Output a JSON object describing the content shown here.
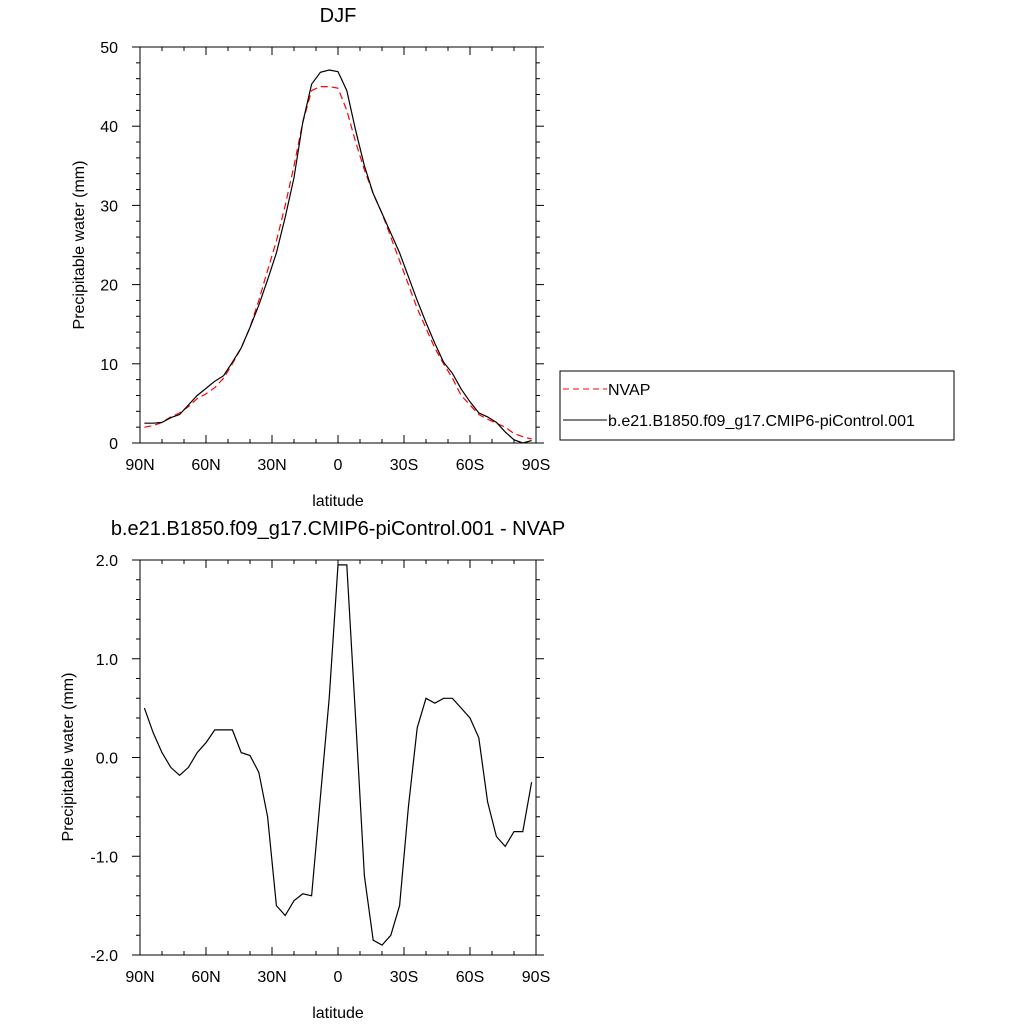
{
  "chart_data": [
    {
      "type": "line",
      "title": "DJF",
      "xlabel": "latitude",
      "ylabel": "Precipitable water (mm)",
      "x_tick_labels": [
        "90N",
        "60N",
        "30N",
        "0",
        "30S",
        "60S",
        "90S"
      ],
      "x_ticks": [
        90,
        60,
        30,
        0,
        -30,
        -60,
        -90
      ],
      "xlim": [
        90,
        -90
      ],
      "ylim": [
        0,
        50
      ],
      "y_ticks": [
        0,
        10,
        20,
        30,
        40,
        50
      ],
      "y_tick_labels": [
        "0",
        "10",
        "20",
        "30",
        "40",
        "50"
      ],
      "grid": false,
      "legend_position": "right-outside",
      "x": [
        88,
        84,
        80,
        76,
        72,
        68,
        64,
        60,
        56,
        52,
        48,
        44,
        40,
        36,
        32,
        28,
        24,
        20,
        16,
        12,
        8,
        4,
        0,
        -4,
        -8,
        -12,
        -16,
        -20,
        -24,
        -28,
        -32,
        -36,
        -40,
        -44,
        -48,
        -52,
        -56,
        -60,
        -64,
        -68,
        -72,
        -76,
        -80,
        -84,
        -88
      ],
      "series": [
        {
          "name": "NVAP",
          "color": "#ff0000",
          "dash": "dashed",
          "values": [
            2.0,
            2.2,
            2.6,
            3.3,
            3.8,
            4.6,
            5.6,
            6.2,
            7.0,
            8.2,
            10.0,
            12.0,
            14.6,
            18.0,
            21.8,
            25.5,
            30.0,
            35.0,
            40.5,
            44.5,
            45.0,
            45.0,
            44.8,
            42.0,
            38.0,
            34.5,
            31.5,
            29.0,
            26.0,
            23.0,
            20.0,
            17.0,
            14.5,
            12.0,
            10.0,
            8.2,
            6.0,
            4.8,
            3.6,
            3.0,
            2.5,
            2.0,
            1.2,
            0.8,
            0.5
          ]
        },
        {
          "name": "b.e21.B1850.f09_g17.CMIP6-piControl.001",
          "color": "#000000",
          "dash": "solid",
          "values": [
            2.5,
            2.5,
            2.6,
            3.2,
            3.6,
            4.8,
            6.0,
            6.9,
            7.8,
            8.5,
            10.2,
            12.0,
            14.6,
            17.4,
            20.6,
            24.0,
            28.5,
            33.5,
            40.5,
            45.3,
            46.8,
            47.1,
            46.9,
            44.5,
            39.5,
            35.0,
            31.5,
            29.0,
            26.5,
            24.0,
            21.0,
            18.0,
            15.2,
            12.6,
            10.2,
            8.8,
            6.8,
            5.2,
            3.8,
            3.3,
            2.6,
            1.4,
            0.4,
            0.0,
            0.3
          ]
        }
      ]
    },
    {
      "type": "line",
      "title": "b.e21.B1850.f09_g17.CMIP6-piControl.001 - NVAP",
      "xlabel": "latitude",
      "ylabel": "Precipitable water (mm)",
      "x_tick_labels": [
        "90N",
        "60N",
        "30N",
        "0",
        "30S",
        "60S",
        "90S"
      ],
      "x_ticks": [
        90,
        60,
        30,
        0,
        -30,
        -60,
        -90
      ],
      "xlim": [
        90,
        -90
      ],
      "ylim": [
        -2.0,
        2.0
      ],
      "y_ticks": [
        -2.0,
        -1.0,
        0.0,
        1.0,
        2.0
      ],
      "y_tick_labels": [
        "-2.0",
        "-1.0",
        "0.0",
        "1.0",
        "2.0"
      ],
      "grid": false,
      "x": [
        88,
        84,
        80,
        76,
        72,
        68,
        64,
        60,
        56,
        52,
        48,
        44,
        40,
        36,
        32,
        28,
        24,
        20,
        16,
        12,
        8,
        4,
        0,
        -4,
        -8,
        -12,
        -16,
        -20,
        -24,
        -28,
        -32,
        -36,
        -40,
        -44,
        -48,
        -52,
        -56,
        -60,
        -64,
        -68,
        -72,
        -76,
        -80,
        -84,
        -88
      ],
      "series": [
        {
          "color": "#000000",
          "dash": "solid",
          "values": [
            0.5,
            0.25,
            0.05,
            -0.1,
            -0.18,
            -0.1,
            0.05,
            0.15,
            0.28,
            0.28,
            0.28,
            0.05,
            0.02,
            -0.15,
            -0.6,
            -1.5,
            -1.6,
            -1.45,
            -1.38,
            -1.4,
            -0.4,
            0.6,
            1.95,
            1.95,
            0.4,
            -1.2,
            -1.85,
            -1.9,
            -1.8,
            -1.5,
            -0.5,
            0.3,
            0.6,
            0.55,
            0.6,
            0.6,
            0.5,
            0.4,
            0.2,
            -0.45,
            -0.8,
            -0.9,
            -0.75,
            -0.75,
            -0.25
          ]
        }
      ]
    }
  ]
}
